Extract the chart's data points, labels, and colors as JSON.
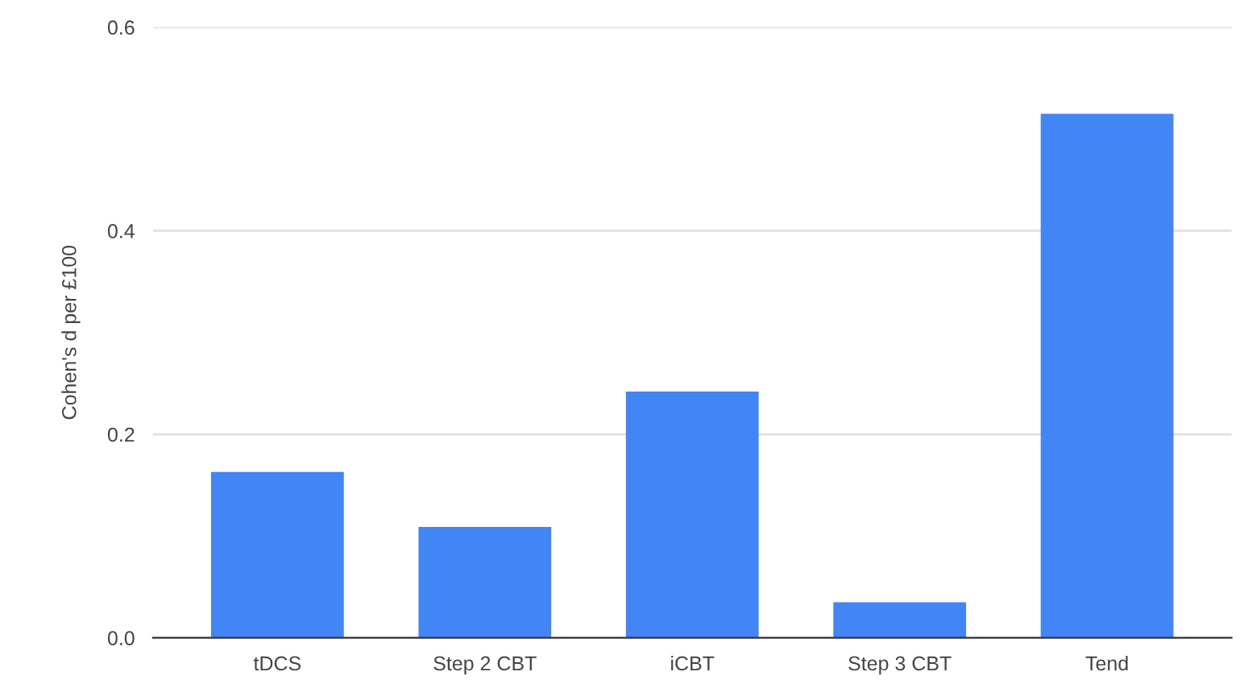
{
  "chart_data": {
    "type": "bar",
    "ylabel": "Cohen's d per £100",
    "categories": [
      "tDCS",
      "Step 2 CBT",
      "iCBT",
      "Step 3 CBT",
      "Tend"
    ],
    "values": [
      0.163,
      0.109,
      0.242,
      0.035,
      0.515
    ],
    "color": "#4285f4",
    "ylim": [
      0,
      0.6
    ],
    "yticks": [
      {
        "value": 0,
        "label": "0.0"
      },
      0.2,
      0.4,
      0.6
    ],
    "grid": "y"
  }
}
